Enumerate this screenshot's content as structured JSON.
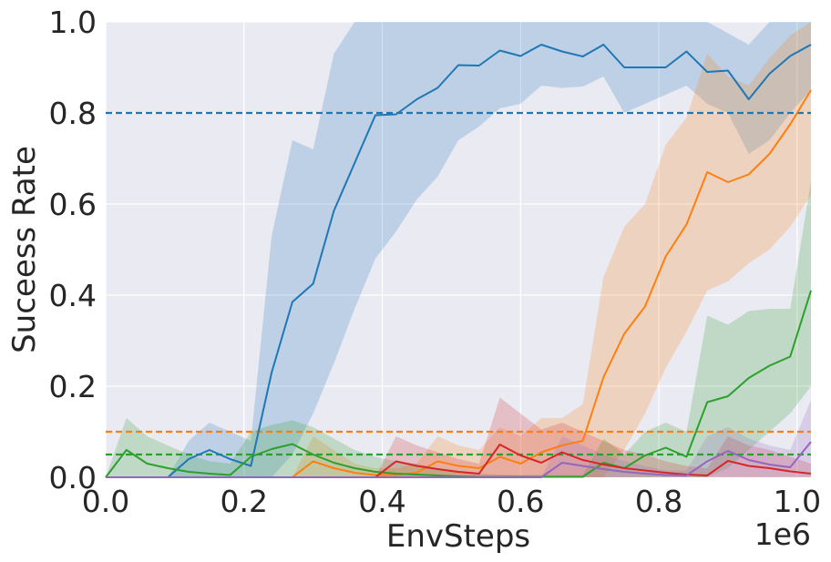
{
  "chart_data": {
    "type": "line",
    "xlabel": "EnvSteps",
    "ylabel": "Suceess Rate",
    "x_offset_label": "1e6",
    "xlim": [
      0,
      1.02
    ],
    "ylim": [
      0,
      1.0
    ],
    "grid": true,
    "x_ticks": [
      0.0,
      0.2,
      0.4,
      0.6,
      0.8,
      1.0
    ],
    "x_tick_labels": [
      "0.0",
      "0.2",
      "0.4",
      "0.6",
      "0.8",
      "1.0"
    ],
    "y_ticks": [
      0.0,
      0.2,
      0.4,
      0.6,
      0.8,
      1.0
    ],
    "y_tick_labels": [
      "0.0",
      "0.2",
      "0.4",
      "0.6",
      "0.8",
      "1.0"
    ],
    "x": [
      0.0,
      0.03,
      0.06,
      0.09,
      0.12,
      0.15,
      0.18,
      0.21,
      0.24,
      0.27,
      0.3,
      0.33,
      0.36,
      0.39,
      0.42,
      0.45,
      0.48,
      0.51,
      0.54,
      0.57,
      0.6,
      0.63,
      0.66,
      0.69,
      0.72,
      0.75,
      0.78,
      0.81,
      0.84,
      0.87,
      0.9,
      0.93,
      0.96,
      0.99,
      1.02
    ],
    "series": [
      {
        "color": "#1f77b4",
        "values": [
          0.0,
          0.0,
          0.0,
          0.0,
          0.04,
          0.06,
          0.04,
          0.025,
          0.23,
          0.385,
          0.425,
          0.585,
          0.69,
          0.795,
          0.797,
          0.83,
          0.855,
          0.905,
          0.904,
          0.937,
          0.925,
          0.95,
          0.935,
          0.924,
          0.95,
          0.9,
          0.9,
          0.9,
          0.935,
          0.89,
          0.893,
          0.83,
          0.886,
          0.925,
          0.95
        ],
        "upper": [
          0.0,
          0.0,
          0.0,
          0.0,
          0.08,
          0.12,
          0.1,
          0.08,
          0.53,
          0.74,
          0.72,
          0.93,
          1.0,
          1.0,
          1.0,
          1.0,
          1.0,
          1.0,
          1.0,
          1.0,
          1.0,
          1.0,
          1.0,
          1.0,
          1.0,
          1.0,
          1.0,
          1.0,
          1.0,
          1.0,
          0.975,
          0.95,
          1.0,
          1.0,
          1.0
        ],
        "lower": [
          0.0,
          0.0,
          0.0,
          0.0,
          0.0,
          0.0,
          0.0,
          0.0,
          0.0,
          0.05,
          0.14,
          0.25,
          0.37,
          0.48,
          0.54,
          0.61,
          0.66,
          0.74,
          0.77,
          0.81,
          0.82,
          0.86,
          0.855,
          0.858,
          0.88,
          0.8,
          0.82,
          0.84,
          0.86,
          0.82,
          0.8,
          0.71,
          0.74,
          0.8,
          0.85
        ]
      },
      {
        "color": "#ff7f0e",
        "values": [
          0.0,
          0.0,
          0.0,
          0.0,
          0.0,
          0.0,
          0.0,
          0.0,
          0.0,
          0.0,
          0.035,
          0.02,
          0.01,
          0.005,
          0.005,
          0.01,
          0.035,
          0.025,
          0.02,
          0.045,
          0.03,
          0.055,
          0.07,
          0.08,
          0.22,
          0.315,
          0.375,
          0.485,
          0.555,
          0.67,
          0.648,
          0.665,
          0.71,
          0.775,
          0.85
        ],
        "upper": [
          0.0,
          0.0,
          0.0,
          0.0,
          0.0,
          0.0,
          0.0,
          0.0,
          0.0,
          0.0,
          0.09,
          0.06,
          0.03,
          0.02,
          0.02,
          0.03,
          0.09,
          0.07,
          0.06,
          0.11,
          0.09,
          0.13,
          0.13,
          0.16,
          0.44,
          0.55,
          0.6,
          0.73,
          0.79,
          0.93,
          0.88,
          0.86,
          0.92,
          0.97,
          1.0
        ],
        "lower": [
          0.0,
          0.0,
          0.0,
          0.0,
          0.0,
          0.0,
          0.0,
          0.0,
          0.0,
          0.0,
          0.0,
          0.0,
          0.0,
          0.0,
          0.0,
          0.0,
          0.0,
          0.0,
          0.0,
          0.0,
          0.0,
          0.0,
          0.0,
          0.0,
          0.0,
          0.06,
          0.14,
          0.24,
          0.32,
          0.41,
          0.43,
          0.47,
          0.5,
          0.55,
          0.62
        ]
      },
      {
        "color": "#2ca02c",
        "values": [
          0.0,
          0.06,
          0.03,
          0.02,
          0.012,
          0.008,
          0.005,
          0.045,
          0.062,
          0.073,
          0.05,
          0.032,
          0.02,
          0.012,
          0.008,
          0.006,
          0.004,
          0.002,
          0.001,
          0.001,
          0.001,
          0.001,
          0.001,
          0.001,
          0.032,
          0.02,
          0.048,
          0.065,
          0.045,
          0.165,
          0.178,
          0.218,
          0.245,
          0.265,
          0.41
        ],
        "upper": [
          0.0,
          0.13,
          0.09,
          0.07,
          0.05,
          0.035,
          0.03,
          0.1,
          0.115,
          0.125,
          0.11,
          0.085,
          0.06,
          0.045,
          0.035,
          0.03,
          0.02,
          0.012,
          0.008,
          0.006,
          0.005,
          0.005,
          0.005,
          0.005,
          0.085,
          0.05,
          0.1,
          0.12,
          0.1,
          0.355,
          0.335,
          0.365,
          0.37,
          0.37,
          0.65
        ],
        "lower": [
          0.0,
          0.0,
          0.0,
          0.0,
          0.0,
          0.0,
          0.0,
          0.0,
          0.0,
          0.0,
          0.0,
          0.0,
          0.0,
          0.0,
          0.0,
          0.0,
          0.0,
          0.0,
          0.0,
          0.0,
          0.0,
          0.0,
          0.0,
          0.0,
          0.0,
          0.0,
          0.0,
          0.0,
          0.0,
          0.0,
          0.02,
          0.06,
          0.1,
          0.14,
          0.2
        ]
      },
      {
        "color": "#d62728",
        "values": [
          0.0,
          0.0,
          0.0,
          0.0,
          0.0,
          0.0,
          0.0,
          0.0,
          0.0,
          0.0,
          0.0,
          0.0,
          0.0,
          0.0,
          0.035,
          0.025,
          0.018,
          0.012,
          0.008,
          0.072,
          0.048,
          0.032,
          0.055,
          0.038,
          0.028,
          0.02,
          0.015,
          0.01,
          0.006,
          0.004,
          0.036,
          0.025,
          0.02,
          0.013,
          0.008
        ],
        "upper": [
          0.0,
          0.0,
          0.0,
          0.0,
          0.0,
          0.0,
          0.0,
          0.0,
          0.0,
          0.0,
          0.0,
          0.0,
          0.0,
          0.0,
          0.09,
          0.07,
          0.055,
          0.04,
          0.03,
          0.175,
          0.14,
          0.105,
          0.12,
          0.1,
          0.08,
          0.06,
          0.05,
          0.035,
          0.025,
          0.02,
          0.09,
          0.07,
          0.06,
          0.045,
          0.03
        ],
        "lower": [
          0.0,
          0.0,
          0.0,
          0.0,
          0.0,
          0.0,
          0.0,
          0.0,
          0.0,
          0.0,
          0.0,
          0.0,
          0.0,
          0.0,
          0.0,
          0.0,
          0.0,
          0.0,
          0.0,
          0.0,
          0.0,
          0.0,
          0.0,
          0.0,
          0.0,
          0.0,
          0.0,
          0.0,
          0.0,
          0.0,
          0.0,
          0.0,
          0.0,
          0.0,
          0.0
        ]
      },
      {
        "color": "#9467bd",
        "values": [
          0.0,
          0.0,
          0.0,
          0.0,
          0.0,
          0.0,
          0.0,
          0.0,
          0.0,
          0.0,
          0.0,
          0.0,
          0.0,
          0.0,
          0.0,
          0.0,
          0.0,
          0.0,
          0.0,
          0.0,
          0.0,
          0.0,
          0.032,
          0.025,
          0.018,
          0.012,
          0.008,
          0.005,
          0.004,
          0.035,
          0.058,
          0.038,
          0.028,
          0.022,
          0.078
        ],
        "upper": [
          0.0,
          0.0,
          0.0,
          0.0,
          0.0,
          0.0,
          0.0,
          0.0,
          0.0,
          0.0,
          0.0,
          0.0,
          0.0,
          0.0,
          0.0,
          0.0,
          0.0,
          0.0,
          0.0,
          0.0,
          0.0,
          0.0,
          0.09,
          0.07,
          0.05,
          0.035,
          0.025,
          0.015,
          0.015,
          0.09,
          0.11,
          0.085,
          0.07,
          0.06,
          0.17
        ],
        "lower": [
          0.0,
          0.0,
          0.0,
          0.0,
          0.0,
          0.0,
          0.0,
          0.0,
          0.0,
          0.0,
          0.0,
          0.0,
          0.0,
          0.0,
          0.0,
          0.0,
          0.0,
          0.0,
          0.0,
          0.0,
          0.0,
          0.0,
          0.0,
          0.0,
          0.0,
          0.0,
          0.0,
          0.0,
          0.0,
          0.0,
          0.0,
          0.0,
          0.0,
          0.0,
          0.0
        ]
      }
    ],
    "reference_lines": [
      {
        "y": 0.8,
        "color": "#1f77b4",
        "style": "dashed"
      },
      {
        "y": 0.1,
        "color": "#ff7f0e",
        "style": "dashed"
      },
      {
        "y": 0.05,
        "color": "#2ca02c",
        "style": "dashed"
      }
    ]
  },
  "colors": {
    "plot_background": "#eaeaf2",
    "grid": "#ffffff",
    "text": "#262626"
  }
}
